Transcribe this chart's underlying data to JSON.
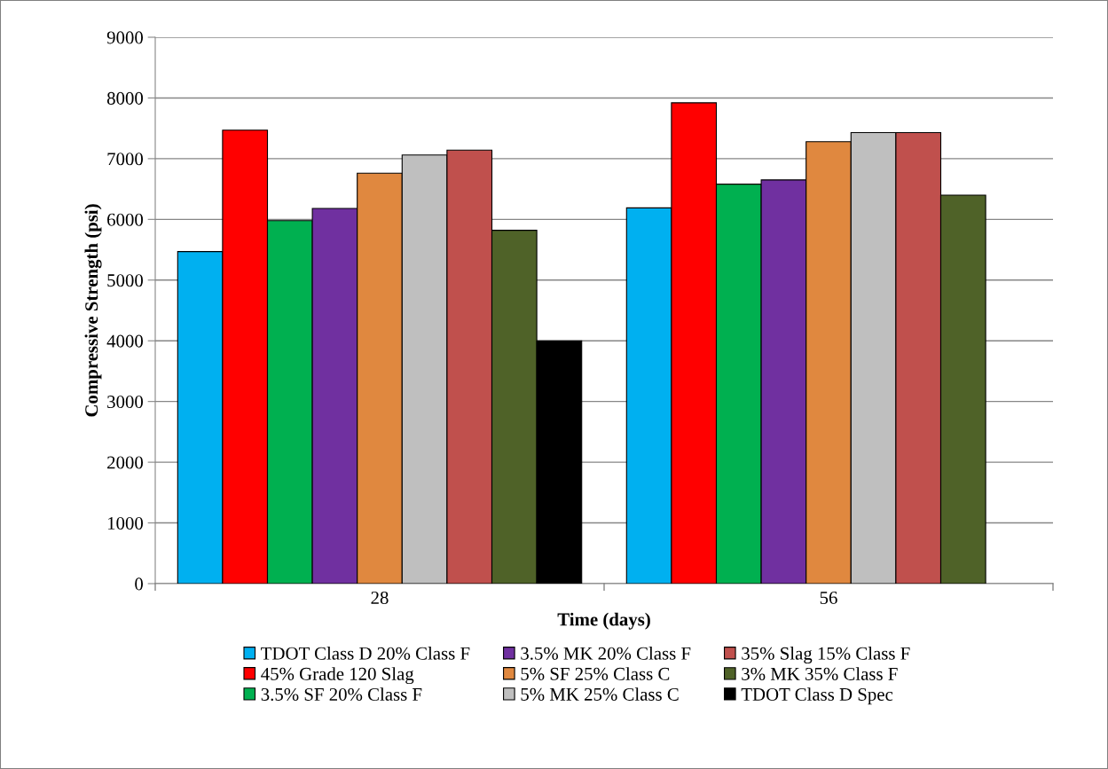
{
  "chart_data": {
    "type": "bar",
    "xlabel": "Time (days)",
    "ylabel": "Compressive Strength (psi)",
    "categories": [
      "28",
      "56"
    ],
    "series": [
      {
        "name": "TDOT Class D 20% Class F",
        "color": "#00b0f0",
        "values": [
          5470,
          6190
        ]
      },
      {
        "name": "45% Grade 120 Slag",
        "color": "#ff0000",
        "values": [
          7470,
          7920
        ]
      },
      {
        "name": "3.5% SF 20% Class F",
        "color": "#00b050",
        "values": [
          5980,
          6580
        ]
      },
      {
        "name": "3.5% MK 20% Class F",
        "color": "#7030a0",
        "values": [
          6180,
          6650
        ]
      },
      {
        "name": "5% SF 25% Class C",
        "color": "#e0883f",
        "values": [
          6760,
          7280
        ]
      },
      {
        "name": "5% MK 25% Class C",
        "color": "#bfbfbf",
        "values": [
          7060,
          7430
        ]
      },
      {
        "name": "35% Slag 15% Class F",
        "color": "#c0504d",
        "values": [
          7140,
          7430
        ]
      },
      {
        "name": "3% MK 35% Class F",
        "color": "#4f6228",
        "values": [
          5820,
          6400
        ]
      },
      {
        "name": "TDOT Class D Spec",
        "color": "#000000",
        "values": [
          4000,
          null
        ]
      }
    ],
    "ylim": [
      0,
      9000
    ],
    "yticks": [
      0,
      1000,
      2000,
      3000,
      4000,
      5000,
      6000,
      7000,
      8000,
      9000
    ],
    "grid": "y",
    "legend": "bottom"
  }
}
